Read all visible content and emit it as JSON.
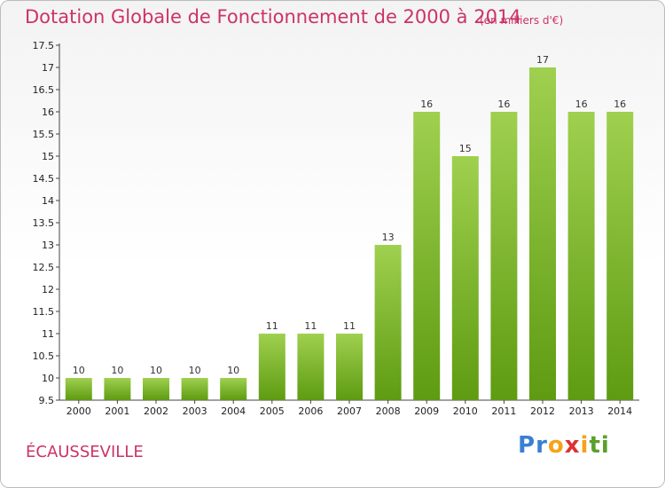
{
  "header": {
    "title": "Dotation Globale de Fonctionnement de 2000 à 2014",
    "unit": "(en milliers d'€)"
  },
  "commune": "ÉCAUSSEVILLE",
  "logo": {
    "letters": [
      "P",
      "r",
      "o",
      "x",
      "i",
      "t",
      "i"
    ],
    "colors": [
      "#3b7fd4",
      "#3b7fd4",
      "#f5a31a",
      "#e03030",
      "#f5a31a",
      "#5aa02c",
      "#5aa02c"
    ]
  },
  "colors": {
    "bar_light": "#9fd04f",
    "bar_dark": "#5e9b12",
    "title": "#cc3366"
  },
  "chart_data": {
    "type": "bar",
    "title": "Dotation Globale de Fonctionnement de 2000 à 2014",
    "xlabel": "",
    "ylabel": "",
    "categories": [
      "2000",
      "2001",
      "2002",
      "2003",
      "2004",
      "2005",
      "2006",
      "2007",
      "2008",
      "2009",
      "2010",
      "2011",
      "2012",
      "2013",
      "2014"
    ],
    "values": [
      10,
      10,
      10,
      10,
      10,
      11,
      11,
      11,
      13,
      16,
      15,
      16,
      17,
      16,
      16
    ],
    "value_labels": [
      "10",
      "10",
      "10",
      "10",
      "10",
      "11",
      "11",
      "11",
      "13",
      "16",
      "15",
      "16",
      "17",
      "16",
      "16"
    ],
    "ylim": [
      9.5,
      17.5
    ],
    "yticks": [
      "9.5",
      "10",
      "10.5",
      "11",
      "11.5",
      "12",
      "12.5",
      "13",
      "13.5",
      "14",
      "14.5",
      "15",
      "15.5",
      "16",
      "16.5",
      "17",
      "17.5"
    ],
    "grid": false,
    "legend": "none"
  }
}
